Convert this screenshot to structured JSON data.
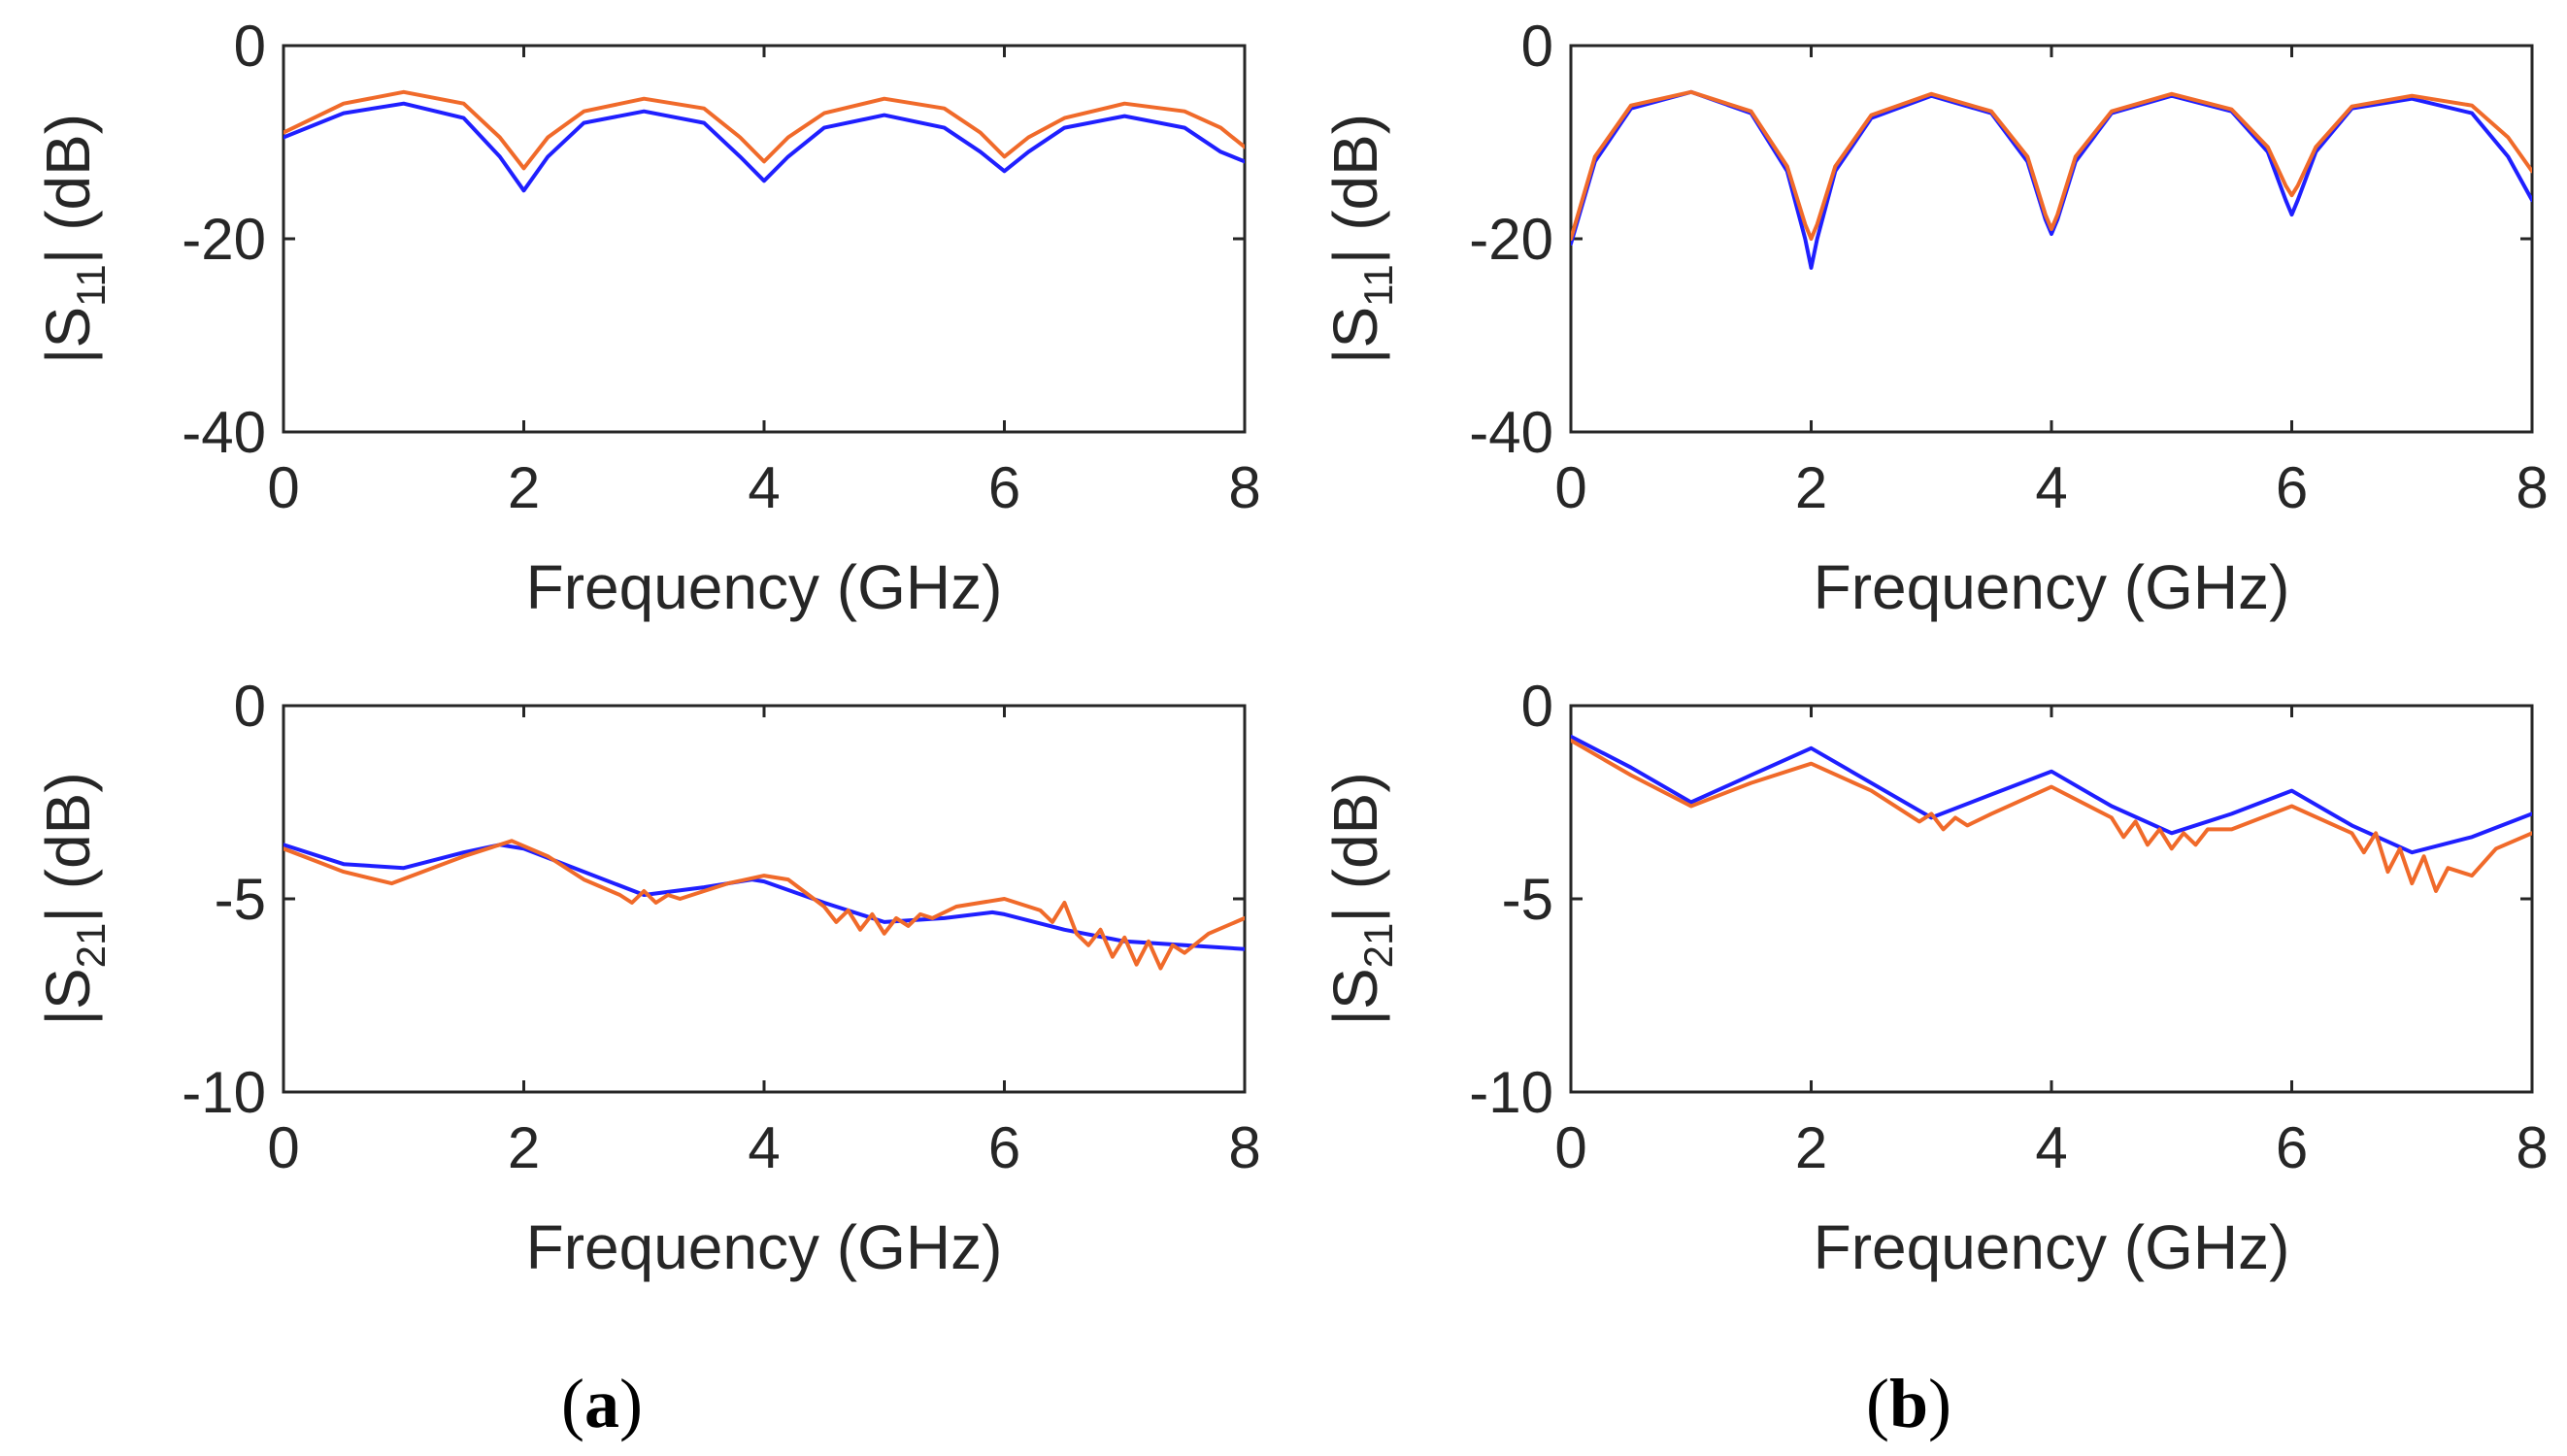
{
  "chart_data": [
    {
      "id": "a-top",
      "type": "line",
      "ylabel": {
        "main": "|S",
        "sub": "11",
        "rest": "| (dB)"
      },
      "xlabel": "Frequency (GHz)",
      "xlim": [
        0,
        8
      ],
      "ylim": [
        -40,
        0
      ],
      "xticks": [
        "0",
        "2",
        "4",
        "6",
        "8"
      ],
      "xtick_values": [
        0,
        2,
        4,
        6,
        8
      ],
      "yticks": [
        "0",
        "-20",
        "-40"
      ],
      "ytick_values": [
        0,
        -20,
        -40
      ],
      "grid": false,
      "series": [
        {
          "name": "blue",
          "color": "#1f1fff",
          "x": [
            0,
            0.5,
            1.0,
            1.5,
            1.8,
            2.0,
            2.2,
            2.5,
            3.0,
            3.5,
            3.8,
            4.0,
            4.2,
            4.5,
            5.0,
            5.5,
            5.8,
            6.0,
            6.2,
            6.5,
            7.0,
            7.5,
            7.8,
            8.0
          ],
          "y": [
            -9.5,
            -7.0,
            -6.0,
            -7.5,
            -11.5,
            -15.0,
            -11.5,
            -8.0,
            -6.8,
            -8.0,
            -11.5,
            -14.0,
            -11.5,
            -8.5,
            -7.2,
            -8.5,
            -11.0,
            -13.0,
            -11.0,
            -8.5,
            -7.3,
            -8.5,
            -11.0,
            -12.0
          ]
        },
        {
          "name": "orange",
          "color": "#f06a2a",
          "x": [
            0,
            0.5,
            1.0,
            1.5,
            1.8,
            2.0,
            2.2,
            2.5,
            3.0,
            3.5,
            3.8,
            4.0,
            4.2,
            4.5,
            5.0,
            5.5,
            5.8,
            6.0,
            6.2,
            6.5,
            7.0,
            7.5,
            7.8,
            8.0
          ],
          "y": [
            -9.0,
            -6.0,
            -4.8,
            -6.0,
            -9.5,
            -12.7,
            -9.5,
            -6.8,
            -5.5,
            -6.5,
            -9.5,
            -12.0,
            -9.5,
            -7.0,
            -5.5,
            -6.5,
            -9.0,
            -11.5,
            -9.5,
            -7.5,
            -6.0,
            -6.8,
            -8.5,
            -10.5
          ]
        }
      ]
    },
    {
      "id": "b-top",
      "type": "line",
      "ylabel": {
        "main": "|S",
        "sub": "11",
        "rest": "| (dB)"
      },
      "xlabel": "Frequency (GHz)",
      "xlim": [
        0,
        8
      ],
      "ylim": [
        -40,
        0
      ],
      "xticks": [
        "0",
        "2",
        "4",
        "6",
        "8"
      ],
      "xtick_values": [
        0,
        2,
        4,
        6,
        8
      ],
      "yticks": [
        "0",
        "-20",
        "-40"
      ],
      "ytick_values": [
        0,
        -20,
        -40
      ],
      "grid": false,
      "series": [
        {
          "name": "blue",
          "color": "#1f1fff",
          "x": [
            0,
            0.2,
            0.5,
            1.0,
            1.5,
            1.8,
            1.95,
            2.0,
            2.05,
            2.2,
            2.5,
            3.0,
            3.5,
            3.8,
            3.95,
            4.0,
            4.05,
            4.2,
            4.5,
            5.0,
            5.5,
            5.8,
            5.95,
            6.0,
            6.05,
            6.2,
            6.5,
            7.0,
            7.5,
            7.8,
            8.0
          ],
          "y": [
            -20.5,
            -12.0,
            -6.5,
            -4.8,
            -7.0,
            -13.0,
            -20.0,
            -23.0,
            -20.0,
            -13.0,
            -7.5,
            -5.2,
            -7.0,
            -12.0,
            -18.0,
            -19.5,
            -18.0,
            -12.0,
            -7.0,
            -5.2,
            -6.8,
            -11.0,
            -16.0,
            -17.5,
            -16.0,
            -11.0,
            -6.5,
            -5.5,
            -7.0,
            -11.5,
            -16.0
          ]
        },
        {
          "name": "orange",
          "color": "#f06a2a",
          "x": [
            0,
            0.2,
            0.5,
            1.0,
            1.5,
            1.8,
            1.95,
            2.0,
            2.05,
            2.2,
            2.5,
            3.0,
            3.5,
            3.8,
            3.95,
            4.0,
            4.05,
            4.2,
            4.5,
            5.0,
            5.5,
            5.8,
            5.95,
            6.0,
            6.05,
            6.2,
            6.5,
            7.0,
            7.5,
            7.8,
            8.0
          ],
          "y": [
            -20.0,
            -11.5,
            -6.2,
            -4.8,
            -6.8,
            -12.5,
            -18.5,
            -20.0,
            -18.5,
            -12.5,
            -7.2,
            -5.0,
            -6.8,
            -11.5,
            -17.5,
            -19.0,
            -17.5,
            -11.5,
            -6.8,
            -5.0,
            -6.6,
            -10.5,
            -14.5,
            -15.5,
            -14.5,
            -10.5,
            -6.3,
            -5.2,
            -6.2,
            -9.5,
            -13.0
          ]
        }
      ]
    },
    {
      "id": "a-bottom",
      "type": "line",
      "ylabel": {
        "main": "|S",
        "sub": "21",
        "rest": "| (dB)"
      },
      "xlabel": "Frequency (GHz)",
      "xlim": [
        0,
        8
      ],
      "ylim": [
        -10,
        0
      ],
      "xticks": [
        "0",
        "2",
        "4",
        "6",
        "8"
      ],
      "xtick_values": [
        0,
        2,
        4,
        6,
        8
      ],
      "yticks": [
        "0",
        "-5",
        "-10"
      ],
      "ytick_values": [
        0,
        -5,
        -10
      ],
      "grid": false,
      "series": [
        {
          "name": "blue",
          "color": "#1f1fff",
          "x": [
            0,
            0.5,
            1.0,
            1.5,
            1.8,
            2.0,
            2.5,
            3.0,
            3.5,
            3.9,
            4.0,
            4.5,
            5.0,
            5.5,
            5.9,
            6.0,
            6.5,
            7.0,
            7.5,
            8.0
          ],
          "y": [
            -3.6,
            -4.1,
            -4.2,
            -3.8,
            -3.6,
            -3.7,
            -4.3,
            -4.9,
            -4.7,
            -4.5,
            -4.55,
            -5.1,
            -5.6,
            -5.5,
            -5.35,
            -5.4,
            -5.8,
            -6.1,
            -6.2,
            -6.3
          ]
        },
        {
          "name": "orange",
          "color": "#f06a2a",
          "x": [
            0,
            0.5,
            0.9,
            1.5,
            1.9,
            2.2,
            2.5,
            2.8,
            2.9,
            3.0,
            3.1,
            3.2,
            3.3,
            3.5,
            3.7,
            4.0,
            4.2,
            4.5,
            4.6,
            4.7,
            4.8,
            4.9,
            5.0,
            5.1,
            5.2,
            5.3,
            5.4,
            5.6,
            6.0,
            6.3,
            6.4,
            6.5,
            6.6,
            6.7,
            6.8,
            6.9,
            7.0,
            7.1,
            7.2,
            7.3,
            7.4,
            7.5,
            7.7,
            8.0
          ],
          "y": [
            -3.7,
            -4.3,
            -4.6,
            -3.9,
            -3.5,
            -3.9,
            -4.5,
            -4.9,
            -5.1,
            -4.8,
            -5.1,
            -4.9,
            -5.0,
            -4.8,
            -4.6,
            -4.4,
            -4.5,
            -5.2,
            -5.6,
            -5.3,
            -5.8,
            -5.4,
            -5.9,
            -5.5,
            -5.7,
            -5.4,
            -5.5,
            -5.2,
            -5.0,
            -5.3,
            -5.6,
            -5.1,
            -5.9,
            -6.2,
            -5.8,
            -6.5,
            -6.0,
            -6.7,
            -6.1,
            -6.8,
            -6.2,
            -6.4,
            -5.9,
            -5.5
          ]
        }
      ]
    },
    {
      "id": "b-bottom",
      "type": "line",
      "ylabel": {
        "main": "|S",
        "sub": "21",
        "rest": "| (dB)"
      },
      "xlabel": "Frequency (GHz)",
      "xlim": [
        0,
        8
      ],
      "ylim": [
        -10,
        0
      ],
      "xticks": [
        "0",
        "2",
        "4",
        "6",
        "8"
      ],
      "xtick_values": [
        0,
        2,
        4,
        6,
        8
      ],
      "yticks": [
        "0",
        "-5",
        "-10"
      ],
      "ytick_values": [
        0,
        -5,
        -10
      ],
      "grid": false,
      "series": [
        {
          "name": "blue",
          "color": "#1f1fff",
          "x": [
            0,
            0.5,
            1.0,
            1.5,
            2.0,
            2.5,
            3.0,
            3.5,
            4.0,
            4.5,
            5.0,
            5.5,
            6.0,
            6.5,
            7.0,
            7.5,
            8.0
          ],
          "y": [
            -0.8,
            -1.6,
            -2.5,
            -1.8,
            -1.1,
            -2.0,
            -2.9,
            -2.3,
            -1.7,
            -2.6,
            -3.3,
            -2.8,
            -2.2,
            -3.1,
            -3.8,
            -3.4,
            -2.8
          ]
        },
        {
          "name": "orange",
          "color": "#f06a2a",
          "x": [
            0,
            0.5,
            1.0,
            1.5,
            2.0,
            2.5,
            2.9,
            3.0,
            3.1,
            3.2,
            3.3,
            3.5,
            4.0,
            4.5,
            4.6,
            4.7,
            4.8,
            4.9,
            5.0,
            5.1,
            5.2,
            5.3,
            5.5,
            6.0,
            6.5,
            6.6,
            6.7,
            6.8,
            6.9,
            7.0,
            7.1,
            7.2,
            7.3,
            7.5,
            7.7,
            8.0
          ],
          "y": [
            -0.9,
            -1.8,
            -2.6,
            -2.0,
            -1.5,
            -2.2,
            -3.0,
            -2.8,
            -3.2,
            -2.9,
            -3.1,
            -2.8,
            -2.1,
            -2.9,
            -3.4,
            -3.0,
            -3.6,
            -3.2,
            -3.7,
            -3.3,
            -3.6,
            -3.2,
            -3.2,
            -2.6,
            -3.3,
            -3.8,
            -3.3,
            -4.3,
            -3.7,
            -4.6,
            -3.9,
            -4.8,
            -4.2,
            -4.4,
            -3.7,
            -3.3
          ]
        }
      ]
    }
  ],
  "panel_labels": [
    {
      "open": "(",
      "letter": "a",
      "close": ")"
    },
    {
      "open": "(",
      "letter": "b",
      "close": ")"
    }
  ]
}
